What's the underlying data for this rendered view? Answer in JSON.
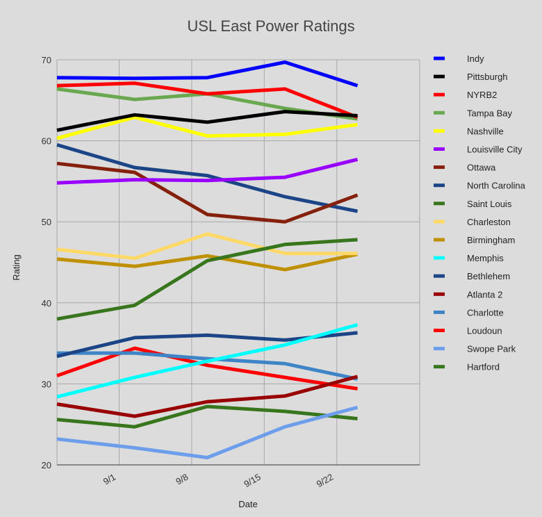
{
  "chart_data": {
    "type": "line",
    "title": "USL East Power Ratings",
    "xlabel": "Date",
    "ylabel": "Rating",
    "ylim": [
      20,
      70
    ],
    "yticks": [
      20,
      30,
      40,
      50,
      60,
      70
    ],
    "xlim": [
      -6,
      29
    ],
    "x": [
      -6,
      1.5,
      8.5,
      16,
      23
    ],
    "xticks": [
      {
        "value": 0,
        "label": "9/1"
      },
      {
        "value": 7,
        "label": "9/8"
      },
      {
        "value": 14,
        "label": "9/15"
      },
      {
        "value": 21,
        "label": "9/22"
      }
    ],
    "grid": true,
    "legend": "right",
    "series": [
      {
        "name": "Indy",
        "color": "#0000ff",
        "values": [
          67.8,
          67.7,
          67.8,
          69.7,
          66.8
        ]
      },
      {
        "name": "Pittsburgh",
        "color": "#000000",
        "values": [
          61.3,
          63.2,
          62.3,
          63.6,
          63.1
        ]
      },
      {
        "name": "NYRB2",
        "color": "#ff0000",
        "values": [
          66.8,
          67.1,
          65.8,
          66.4,
          62.9
        ]
      },
      {
        "name": "Tampa Bay",
        "color": "#6aa84f",
        "values": [
          66.4,
          65.1,
          65.8,
          64.0,
          62.7
        ]
      },
      {
        "name": "Nashville",
        "color": "#ffff00",
        "values": [
          60.3,
          62.9,
          60.6,
          60.8,
          62.0
        ]
      },
      {
        "name": "Louisville City",
        "color": "#9900ff",
        "values": [
          54.8,
          55.2,
          55.1,
          55.5,
          57.7
        ]
      },
      {
        "name": "Ottawa",
        "color": "#85200c",
        "values": [
          57.2,
          56.1,
          50.9,
          50.0,
          53.3
        ]
      },
      {
        "name": "North Carolina",
        "color": "#1c4587",
        "values": [
          59.5,
          56.7,
          55.7,
          53.1,
          51.3
        ]
      },
      {
        "name": "Saint Louis",
        "color": "#38761d",
        "values": [
          38.0,
          39.7,
          45.2,
          47.2,
          47.8
        ]
      },
      {
        "name": "Charleston",
        "color": "#ffd966",
        "values": [
          46.6,
          45.5,
          48.5,
          46.1,
          46.1
        ]
      },
      {
        "name": "Birmingham",
        "color": "#bf9000",
        "values": [
          45.4,
          44.5,
          45.8,
          44.1,
          46.0
        ]
      },
      {
        "name": "Memphis",
        "color": "#00ffff",
        "values": [
          28.4,
          30.8,
          32.8,
          34.8,
          37.3
        ]
      },
      {
        "name": "Bethlehem",
        "color": "#1c4587",
        "values": [
          33.4,
          35.7,
          36.0,
          35.4,
          36.3
        ]
      },
      {
        "name": "Atlanta 2",
        "color": "#990000",
        "values": [
          27.5,
          26.0,
          27.8,
          28.5,
          30.9
        ]
      },
      {
        "name": "Charlotte",
        "color": "#3d85c6",
        "values": [
          33.8,
          33.8,
          33.1,
          32.5,
          30.6
        ]
      },
      {
        "name": "Loudoun",
        "color": "#ff0000",
        "values": [
          31.0,
          34.4,
          32.3,
          30.8,
          29.4
        ]
      },
      {
        "name": "Swope Park",
        "color": "#6d9eeb",
        "values": [
          23.2,
          22.1,
          20.9,
          24.7,
          27.1
        ]
      },
      {
        "name": "Hartford",
        "color": "#38761d",
        "values": [
          25.6,
          24.7,
          27.2,
          26.6,
          25.7
        ]
      }
    ]
  }
}
